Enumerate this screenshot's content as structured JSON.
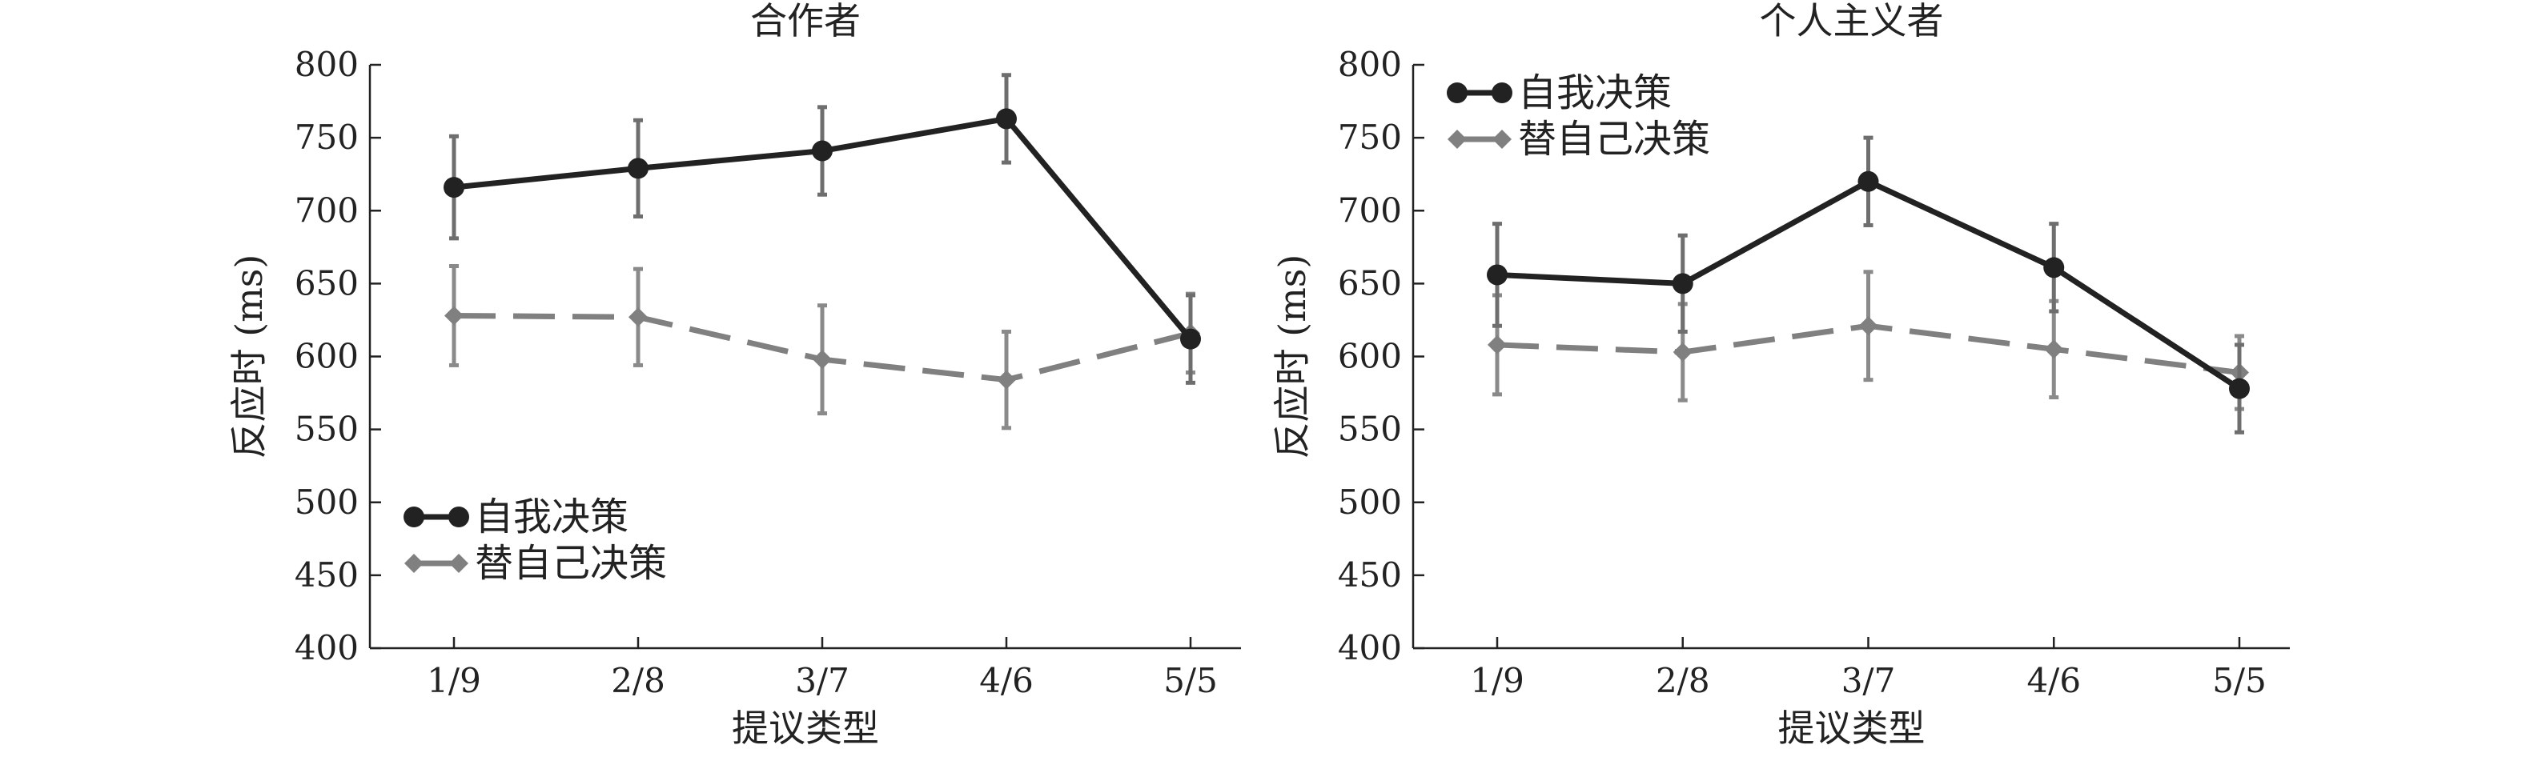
{
  "chart_data": [
    {
      "type": "line",
      "title": "合作者",
      "xlabel": "提议类型",
      "ylabel": "反应时 (ms)",
      "categories": [
        "1/9",
        "2/8",
        "3/7",
        "4/6",
        "5/5"
      ],
      "ylim": [
        400,
        800
      ],
      "yticks": [
        400,
        450,
        500,
        550,
        600,
        650,
        700,
        750,
        800
      ],
      "grid": false,
      "legend_position": "bottom-left",
      "series": [
        {
          "name": "自我决策",
          "style": "solid",
          "marker": "circle",
          "color": "#222222",
          "values": [
            716,
            729,
            741,
            763,
            612
          ],
          "error": [
            35,
            33,
            30,
            30,
            30
          ]
        },
        {
          "name": "替自己决策",
          "style": "dashed",
          "marker": "diamond",
          "color": "#808080",
          "values": [
            628,
            627,
            598,
            584,
            616
          ],
          "error": [
            34,
            33,
            37,
            33,
            27
          ]
        }
      ]
    },
    {
      "type": "line",
      "title": "个人主义者",
      "xlabel": "提议类型",
      "ylabel": "反应时 (ms)",
      "categories": [
        "1/9",
        "2/8",
        "3/7",
        "4/6",
        "5/5"
      ],
      "ylim": [
        400,
        800
      ],
      "yticks": [
        400,
        450,
        500,
        550,
        600,
        650,
        700,
        750,
        800
      ],
      "grid": false,
      "legend_position": "top-left",
      "series": [
        {
          "name": "自我决策",
          "style": "solid",
          "marker": "circle",
          "color": "#222222",
          "values": [
            656,
            650,
            720,
            661,
            578
          ],
          "error": [
            35,
            33,
            30,
            30,
            30
          ]
        },
        {
          "name": "替自己决策",
          "style": "dashed",
          "marker": "diamond",
          "color": "#808080",
          "values": [
            608,
            603,
            621,
            605,
            589
          ],
          "error": [
            34,
            33,
            37,
            33,
            25
          ]
        }
      ]
    }
  ]
}
